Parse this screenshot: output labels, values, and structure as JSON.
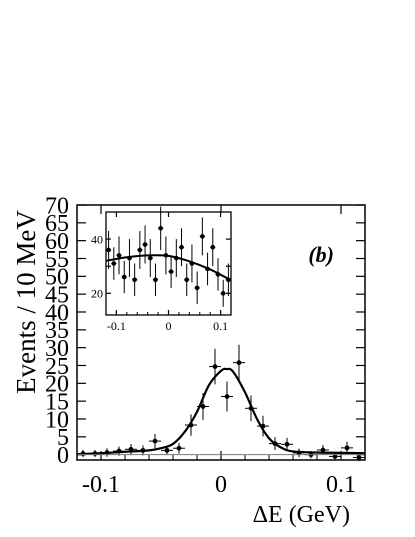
{
  "chart_data": [
    {
      "type": "scatter",
      "panel_label": "(b)",
      "xlabel": "ΔE (GeV)",
      "ylabel": "Events / 10 MeV",
      "xlim": [
        -0.12,
        0.12
      ],
      "ylim": [
        -1.5,
        70
      ],
      "x_ticks": [
        -0.1,
        0,
        0.1
      ],
      "x_tick_labels": [
        "-0.1",
        "0",
        "0.1"
      ],
      "y_ticks": [
        0,
        5,
        10,
        15,
        20,
        25,
        30,
        35,
        40,
        45,
        50,
        55,
        60,
        65,
        70
      ],
      "y_tick_labels": [
        "0",
        "5",
        "10",
        "15",
        "20",
        "25",
        "30",
        "35",
        "40",
        "45",
        "50",
        "55",
        "60",
        "65",
        "70"
      ],
      "grid": false,
      "legend": "none",
      "series": [
        {
          "style": "points-with-error-bars",
          "x": [
            -0.115,
            -0.105,
            -0.095,
            -0.085,
            -0.075,
            -0.065,
            -0.055,
            -0.045,
            -0.035,
            -0.025,
            -0.015,
            -0.005,
            0.005,
            0.015,
            0.025,
            0.035,
            0.045,
            0.055,
            0.065,
            0.075,
            0.085,
            0.095,
            0.105,
            0.115
          ],
          "y": [
            0.3,
            0.3,
            0.6,
            1.0,
            1.5,
            1.2,
            3.8,
            1.2,
            1.8,
            8.3,
            13.5,
            24.7,
            16.3,
            25.8,
            13.0,
            8.0,
            3.1,
            2.9,
            0.5,
            0.0,
            1.3,
            -0.5,
            1.9,
            -0.8
          ],
          "yerr": [
            1.0,
            1.0,
            1.2,
            1.3,
            1.5,
            1.4,
            2.0,
            1.3,
            1.5,
            3.0,
            3.8,
            5.0,
            4.2,
            5.0,
            3.6,
            2.9,
            1.8,
            1.8,
            1.2,
            1.0,
            1.4,
            1.0,
            1.7,
            1.0
          ]
        },
        {
          "style": "fit-curve",
          "x": [
            -0.12,
            -0.1,
            -0.08,
            -0.06,
            -0.05,
            -0.04,
            -0.03,
            -0.02,
            -0.01,
            0.0,
            0.005,
            0.01,
            0.02,
            0.03,
            0.04,
            0.05,
            0.06,
            0.08,
            0.1,
            0.12
          ],
          "y": [
            0.1,
            0.4,
            0.8,
            1.2,
            1.8,
            3.0,
            6.5,
            12.0,
            19.5,
            23.5,
            24.0,
            23.3,
            17.5,
            10.0,
            4.6,
            2.0,
            0.9,
            0.6,
            0.5,
            0.4
          ]
        },
        {
          "style": "baseline",
          "x": [
            -0.12,
            0.12
          ],
          "y": [
            0,
            0
          ]
        }
      ]
    },
    {
      "type": "scatter",
      "role": "inset",
      "xlim": [
        -0.12,
        0.12
      ],
      "ylim": [
        12,
        50
      ],
      "x_ticks": [
        -0.1,
        0,
        0.1
      ],
      "x_tick_labels": [
        "-0.1",
        "0",
        "0.1"
      ],
      "y_ticks": [
        20,
        30,
        40
      ],
      "y_tick_labels": [
        "20",
        "",
        "40"
      ],
      "grid": false,
      "legend": "none",
      "series": [
        {
          "style": "points-with-error-bars",
          "x": [
            -0.115,
            -0.105,
            -0.095,
            -0.085,
            -0.075,
            -0.065,
            -0.055,
            -0.045,
            -0.035,
            -0.025,
            -0.015,
            -0.005,
            0.005,
            0.015,
            0.025,
            0.035,
            0.045,
            0.055,
            0.065,
            0.075,
            0.085,
            0.095,
            0.105,
            0.115
          ],
          "y": [
            36,
            31,
            34,
            26,
            33,
            25,
            36,
            38,
            33,
            25,
            44,
            34,
            28,
            33,
            37,
            25,
            31,
            22,
            41,
            29,
            37,
            27,
            20,
            25
          ],
          "yerr": [
            7,
            6,
            7,
            6,
            7,
            6,
            7,
            7,
            7,
            6,
            8,
            7,
            6,
            7,
            7,
            6,
            7,
            6,
            7,
            6,
            7,
            6,
            5,
            6
          ]
        },
        {
          "style": "fit-curve",
          "x": [
            -0.12,
            -0.08,
            -0.04,
            0.0,
            0.04,
            0.08,
            0.12
          ],
          "y": [
            32.0,
            33.3,
            34.0,
            33.8,
            31.8,
            28.8,
            24.8
          ]
        }
      ]
    }
  ]
}
